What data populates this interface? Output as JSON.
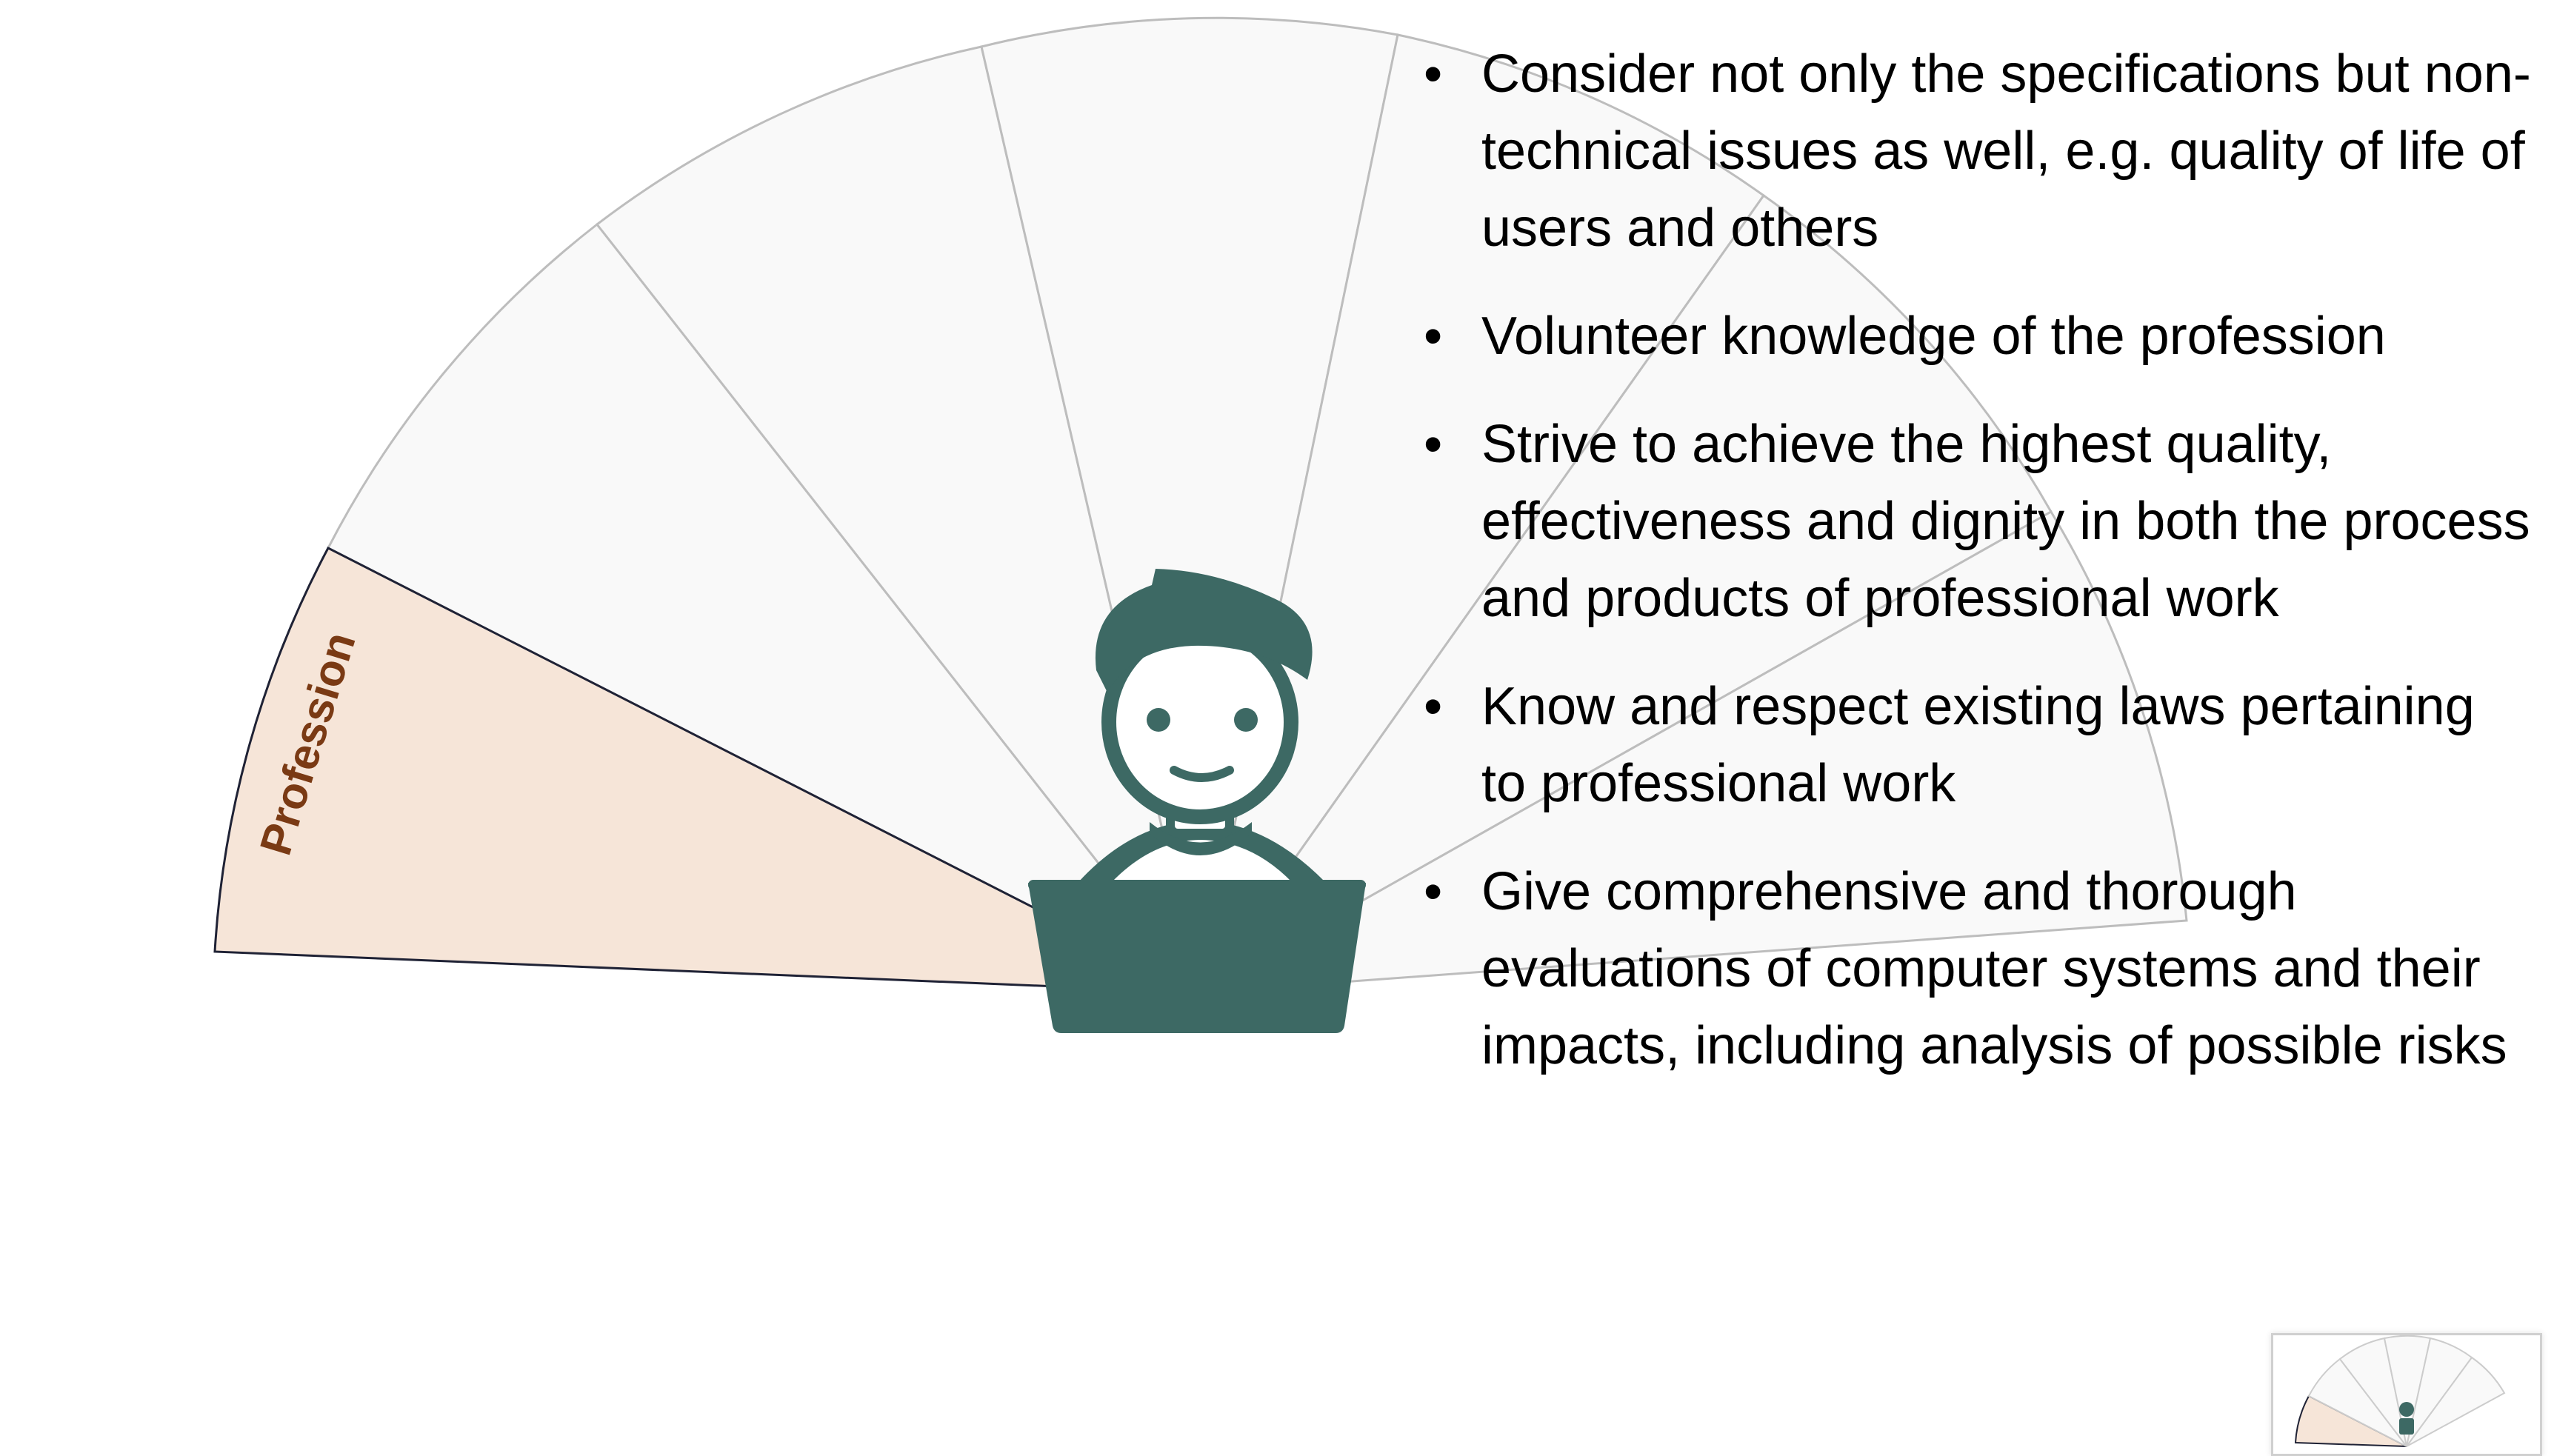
{
  "diagram": {
    "active_segment_label": "Profession",
    "colors": {
      "active_fill": "#f6e5d8",
      "active_label": "#7a3a14",
      "inactive_fill": "#f9f9f9",
      "inactive_stroke": "#bdbdbd",
      "person": "#3d6964"
    },
    "icon": "person-with-laptop-icon"
  },
  "bullets": [
    "Consider not only the specifications but non-technical issues as well, e.g. quality of life of users and others",
    "Volunteer knowledge of the profession",
    "Strive to achieve the highest quality, effectiveness and dignity in both the process and products of professional work",
    "Know and respect existing laws pertaining to professional work",
    "Give comprehensive and thorough evaluations of computer systems and their impacts, including analysis of possible risks"
  ],
  "bullet_symbol": "•"
}
